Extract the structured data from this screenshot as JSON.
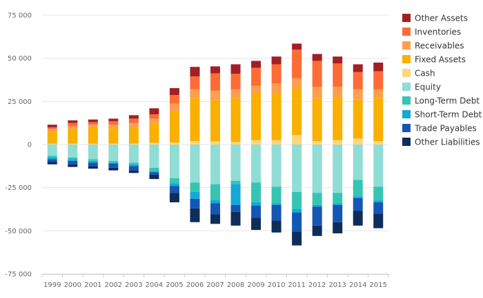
{
  "chart_data": {
    "type": "bar",
    "stacked": true,
    "title": "",
    "xlabel": "",
    "ylabel": "",
    "categories": [
      "1999",
      "2000",
      "2001",
      "2002",
      "2003",
      "2004",
      "2005",
      "2006",
      "2007",
      "2008",
      "2009",
      "2010",
      "2011",
      "2012",
      "2013",
      "2014",
      "2015"
    ],
    "ylim": [
      -75000,
      75000
    ],
    "yticks": [
      75000,
      50000,
      25000,
      0,
      -25000,
      -50000,
      -75000
    ],
    "ytick_labels": [
      "75 000",
      "50 000",
      "25 000",
      "0",
      "-25 000",
      "-50 000",
      "-75 000"
    ],
    "grid": true,
    "legend_position": "right",
    "assets": [
      {
        "name": "Cash",
        "color": "#FDD680",
        "values": [
          500,
          500,
          500,
          500,
          500,
          1000,
          1200,
          2000,
          1800,
          1500,
          2500,
          2500,
          5500,
          2000,
          2500,
          3500,
          2000
        ]
      },
      {
        "name": "Fixed Assets",
        "color": "#F9B000",
        "values": [
          7000,
          8500,
          9500,
          9000,
          9500,
          11500,
          18000,
          25000,
          24000,
          25500,
          27000,
          27000,
          27000,
          25000,
          25000,
          22500,
          25000
        ]
      },
      {
        "name": "Receivables",
        "color": "#FF9E4F",
        "values": [
          1500,
          1500,
          1500,
          2000,
          2500,
          2500,
          4500,
          5000,
          5500,
          5000,
          4500,
          6000,
          6000,
          6500,
          6000,
          6000,
          5000
        ]
      },
      {
        "name": "Inventories",
        "color": "#FF6B35",
        "values": [
          1000,
          2000,
          1500,
          2000,
          2500,
          2500,
          5000,
          7500,
          10000,
          9000,
          10500,
          11000,
          16500,
          15000,
          13500,
          10000,
          10500
        ]
      },
      {
        "name": "Other Assets",
        "color": "#A31F26",
        "values": [
          1500,
          1500,
          1500,
          1500,
          2000,
          3500,
          4000,
          5500,
          4000,
          5500,
          4000,
          4500,
          3500,
          4000,
          4000,
          4500,
          5000
        ]
      }
    ],
    "liabilities": [
      {
        "name": "Equity",
        "color": "#90DDD6",
        "values": [
          -6500,
          -7500,
          -8500,
          -9500,
          -10500,
          -13500,
          -19500,
          -22000,
          -23000,
          -21000,
          -22000,
          -24500,
          -27500,
          -28000,
          -28000,
          -20500,
          -24500
        ]
      },
      {
        "name": "Long-Term Debt",
        "color": "#36C5B3",
        "values": [
          -1000,
          -1000,
          -1000,
          -1000,
          -1000,
          -2000,
          -3000,
          -5500,
          -9000,
          -2000,
          -11500,
          -9500,
          -10000,
          -7000,
          -6000,
          -9500,
          -8000
        ]
      },
      {
        "name": "Short-Term Debt",
        "color": "#15A8D6",
        "values": [
          -1000,
          -1000,
          -1000,
          -500,
          -1000,
          -500,
          -1500,
          -4000,
          -2000,
          -12000,
          -2000,
          -1000,
          -2000,
          -1000,
          -1000,
          -1000,
          -1000
        ]
      },
      {
        "name": "Trade Payables",
        "color": "#1457B5",
        "values": [
          -1500,
          -2000,
          -2000,
          -2500,
          -2500,
          -1500,
          -4000,
          -5500,
          -6500,
          -4000,
          -7000,
          -9000,
          -11000,
          -11000,
          -10000,
          -7500,
          -6500
        ]
      },
      {
        "name": "Other Liabilities",
        "color": "#0E2E5A",
        "values": [
          -1500,
          -1500,
          -1500,
          -1500,
          -1500,
          -2500,
          -5500,
          -8000,
          -5500,
          -8000,
          -7000,
          -7000,
          -8000,
          -6000,
          -6500,
          -8500,
          -8500
        ]
      }
    ],
    "legend": [
      "Other Assets",
      "Inventories",
      "Receivables",
      "Fixed Assets",
      "Cash",
      "Equity",
      "Long-Term Debt",
      "Short-Term Debt",
      "Trade Payables",
      "Other Liabilities"
    ]
  }
}
